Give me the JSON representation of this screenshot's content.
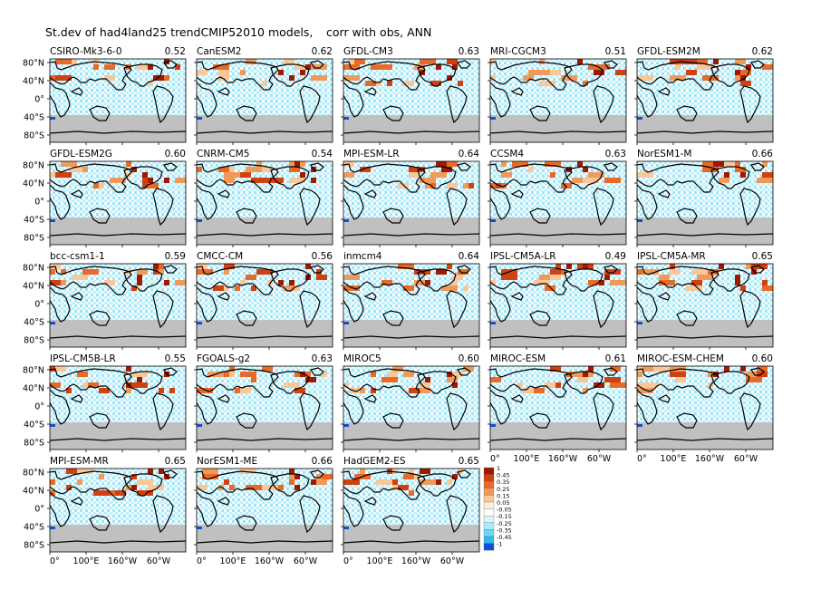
{
  "figure": {
    "title_main": "St.dev of had4land25 trendCMIP52010 models,",
    "title_note": "corr with obs, ANN"
  },
  "axis_labels": {
    "lat": [
      "80°N",
      "40°N",
      "0°",
      "40°S",
      "80°S"
    ],
    "lon": [
      "0°",
      "100°E",
      "160°W",
      "60°W"
    ]
  },
  "colors": {
    "title_note": "#e00000",
    "correlation": "#e00000",
    "land_mask": "#c0c0c0",
    "coast": "#000000"
  },
  "colorbar": {
    "labels": [
      "1",
      "0.45",
      "0.35",
      "0.25",
      "0.15",
      "0.05",
      "-0.05",
      "-0.15",
      "-0.25",
      "-0.35",
      "-0.45",
      "-1"
    ],
    "colors": [
      "#a01800",
      "#d04010",
      "#e86a28",
      "#f09a5a",
      "#f8c898",
      "#fff0d8",
      "#ffffff",
      "#d8f6ff",
      "#a8ecfc",
      "#68d8f4",
      "#30b8ec",
      "#1050d8"
    ]
  },
  "chart_data": {
    "type": "heatmap",
    "title": "St.dev of had4land25 trendCMIP52010 models, corr with obs, ANN",
    "series": [
      {
        "name": "CSIRO-Mk3-6-0",
        "corr": "0.52"
      },
      {
        "name": "CanESM2",
        "corr": "0.62"
      },
      {
        "name": "GFDL-CM3",
        "corr": "0.63"
      },
      {
        "name": "MRI-CGCM3",
        "corr": "0.51"
      },
      {
        "name": "GFDL-ESM2M",
        "corr": "0.62"
      },
      {
        "name": "GFDL-ESM2G",
        "corr": "0.60"
      },
      {
        "name": "CNRM-CM5",
        "corr": "0.54"
      },
      {
        "name": "MPI-ESM-LR",
        "corr": "0.64"
      },
      {
        "name": "CCSM4",
        "corr": "0.63"
      },
      {
        "name": "NorESM1-M",
        "corr": "0.66"
      },
      {
        "name": "bcc-csm1-1",
        "corr": "0.59"
      },
      {
        "name": "CMCC-CM",
        "corr": "0.56"
      },
      {
        "name": "inmcm4",
        "corr": "0.64"
      },
      {
        "name": "IPSL-CM5A-LR",
        "corr": "0.49"
      },
      {
        "name": "IPSL-CM5A-MR",
        "corr": "0.65"
      },
      {
        "name": "IPSL-CM5B-LR",
        "corr": "0.55"
      },
      {
        "name": "FGOALS-g2",
        "corr": "0.63"
      },
      {
        "name": "MIROC5",
        "corr": "0.60"
      },
      {
        "name": "MIROC-ESM",
        "corr": "0.61"
      },
      {
        "name": "MIROC-ESM-CHEM",
        "corr": "0.60"
      },
      {
        "name": "MPI-ESM-MR",
        "corr": "0.65"
      },
      {
        "name": "NorESM1-ME",
        "corr": "0.66"
      },
      {
        "name": "HadGEM2-ES",
        "corr": "0.65"
      }
    ]
  }
}
